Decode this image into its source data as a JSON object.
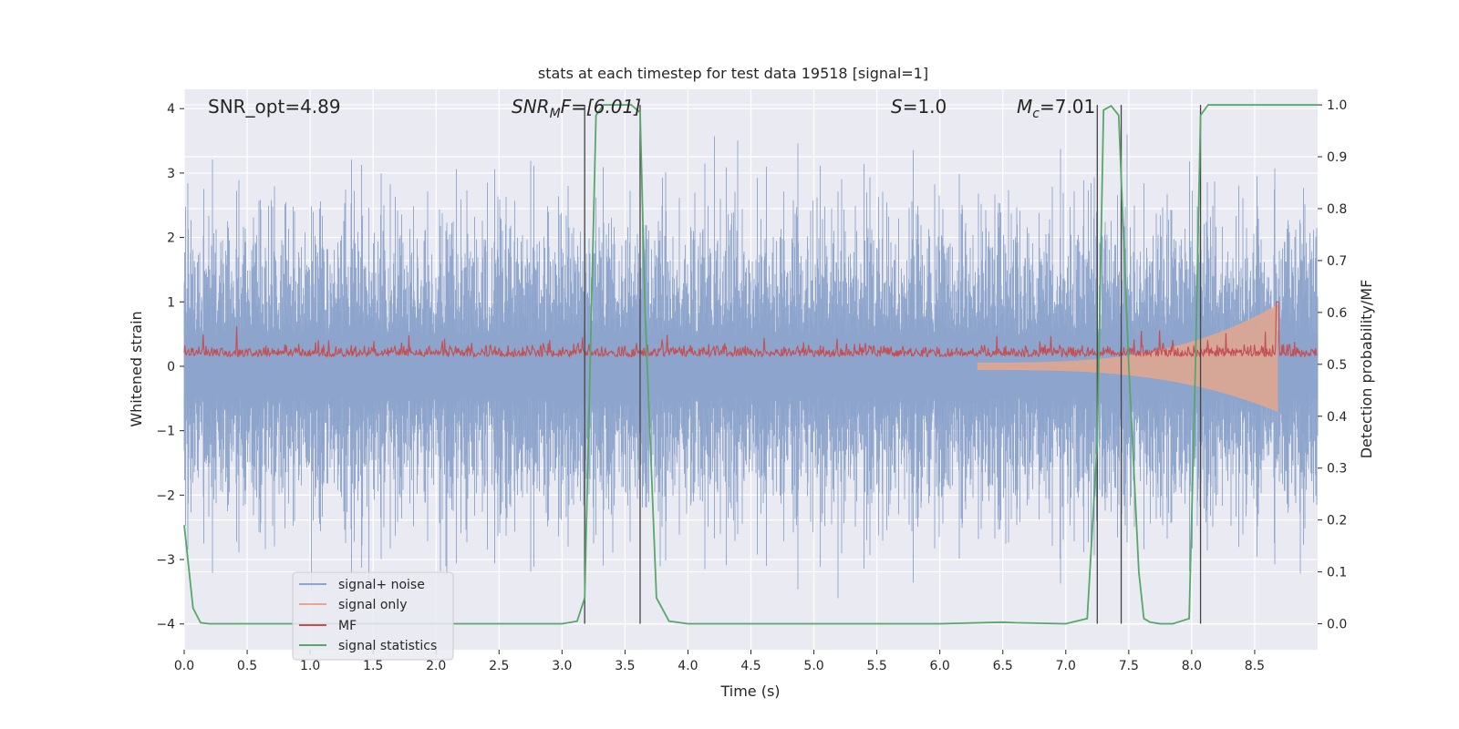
{
  "chart_data": {
    "type": "line",
    "title": "stats at each timestep for test data 19518 [signal=1]",
    "xlabel": "Time (s)",
    "ylabel_left": "Whitened strain",
    "ylabel_right": "Detection probability/MF",
    "xlim": [
      0.0,
      9.0
    ],
    "ylim_left": [
      -4.4,
      4.3
    ],
    "ylim_right": [
      -0.05,
      1.03
    ],
    "xticks": [
      "0.0",
      "0.5",
      "1.0",
      "1.5",
      "2.0",
      "2.5",
      "3.0",
      "3.5",
      "4.0",
      "4.5",
      "5.0",
      "5.5",
      "6.0",
      "6.5",
      "7.0",
      "7.5",
      "8.0",
      "8.5"
    ],
    "yticks_left": [
      "4",
      "3",
      "2",
      "1",
      "0",
      "−1",
      "−2",
      "−3",
      "−4"
    ],
    "yticks_right": [
      "1.0",
      "0.9",
      "0.8",
      "0.7",
      "0.6",
      "0.5",
      "0.4",
      "0.3",
      "0.2",
      "0.1",
      "0.0"
    ],
    "grid": true,
    "legend_position": "lower-left",
    "annotations": {
      "snr_opt": "SNR_opt=4.89",
      "snr_mf_sym": "SNR",
      "snr_mf_sub": "M",
      "snr_mf_rest": "F=[6.01]",
      "s_sym": "S",
      "s_rest": "=1.0",
      "mc_sym": "M",
      "mc_sub": "c",
      "mc_rest": "=7.01"
    },
    "series": [
      {
        "name": "signal+ noise",
        "color": "#8da4cc",
        "axis": "left",
        "description_range": [
          -3.6,
          3.6
        ]
      },
      {
        "name": "signal only",
        "color": "#e8a68a",
        "axis": "left",
        "chirp_end_time": 8.68,
        "chirp_peak": 0.95,
        "chirp_trough": -0.7
      },
      {
        "name": "MF",
        "color": "#c44e52",
        "axis": "left",
        "baseline": 0.2,
        "peak_time": 8.68,
        "peak_value": 1.0
      },
      {
        "name": "signal statistics",
        "color": "#55a868",
        "axis": "right",
        "x": [
          0.0,
          0.07,
          0.13,
          0.2,
          1.0,
          2.0,
          3.0,
          3.12,
          3.18,
          3.27,
          3.33,
          3.55,
          3.62,
          3.66,
          3.75,
          3.85,
          4.0,
          5.0,
          6.0,
          6.5,
          6.6,
          7.0,
          7.17,
          7.25,
          7.3,
          7.36,
          7.42,
          7.5,
          7.58,
          7.62,
          7.67,
          7.75,
          7.85,
          7.98,
          8.03,
          8.07,
          8.13,
          8.3,
          9.0
        ],
        "y": [
          0.19,
          0.03,
          0.002,
          0.0,
          0.0,
          0.0,
          0.0,
          0.005,
          0.05,
          0.98,
          1.0,
          1.0,
          0.985,
          0.6,
          0.05,
          0.005,
          0.0,
          0.0,
          0.0,
          0.003,
          0.002,
          0.0,
          0.01,
          0.35,
          0.99,
          0.998,
          0.98,
          0.5,
          0.1,
          0.01,
          0.003,
          0.0,
          0.0,
          0.01,
          0.5,
          0.98,
          1.0,
          1.0,
          1.0
        ]
      }
    ],
    "detection_markers": [
      3.18,
      3.62,
      7.25,
      7.44,
      8.07
    ]
  }
}
